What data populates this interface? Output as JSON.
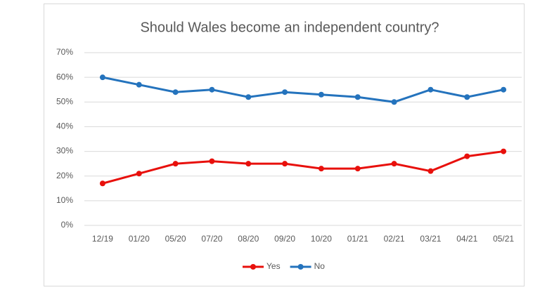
{
  "chart_data": {
    "type": "line",
    "title": "Should Wales become an independent country?",
    "categories": [
      "12/19",
      "01/20",
      "05/20",
      "07/20",
      "08/20",
      "09/20",
      "10/20",
      "01/21",
      "02/21",
      "03/21",
      "04/21",
      "05/21"
    ],
    "series": [
      {
        "name": "Yes",
        "color": "#e8100c",
        "values": [
          17,
          21,
          25,
          26,
          25,
          25,
          23,
          23,
          25,
          22,
          28,
          30
        ]
      },
      {
        "name": "No",
        "color": "#2473bd",
        "values": [
          60,
          57,
          54,
          55,
          52,
          54,
          53,
          52,
          50,
          55,
          52,
          55
        ]
      }
    ],
    "ylim": [
      0,
      70
    ],
    "yticks": [
      {
        "value": 0,
        "label": "0%"
      },
      {
        "value": 10,
        "label": "10%"
      },
      {
        "value": 20,
        "label": "20%"
      },
      {
        "value": 30,
        "label": "30%"
      },
      {
        "value": 40,
        "label": "40%"
      },
      {
        "value": 50,
        "label": "50%"
      },
      {
        "value": 60,
        "label": "60%"
      },
      {
        "value": 70,
        "label": "70%"
      }
    ],
    "grid": true,
    "legend": "bottom"
  }
}
